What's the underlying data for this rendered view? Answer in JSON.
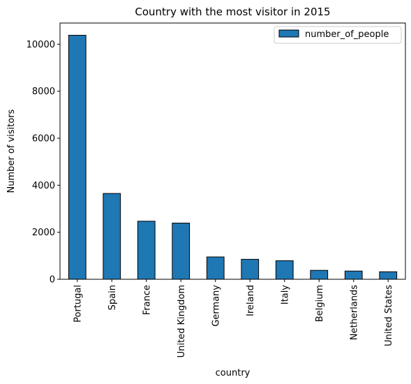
{
  "chart_data": {
    "type": "bar",
    "title": "Country with the most visitor in 2015",
    "xlabel": "country",
    "ylabel": "Number of visitors",
    "categories": [
      "Portugal",
      "Spain",
      "France",
      "United Kingdom",
      "Germany",
      "Ireland",
      "Italy",
      "Belgium",
      "Netherlands",
      "United States"
    ],
    "series": [
      {
        "name": "number_of_people",
        "values": [
          10380,
          3650,
          2470,
          2390,
          950,
          850,
          790,
          380,
          350,
          320
        ],
        "color": "#1f77b4"
      }
    ],
    "ylim": [
      0,
      10900
    ],
    "yticks": [
      0,
      2000,
      4000,
      6000,
      8000,
      10000
    ],
    "grid": false,
    "legend_position": "top-right"
  }
}
